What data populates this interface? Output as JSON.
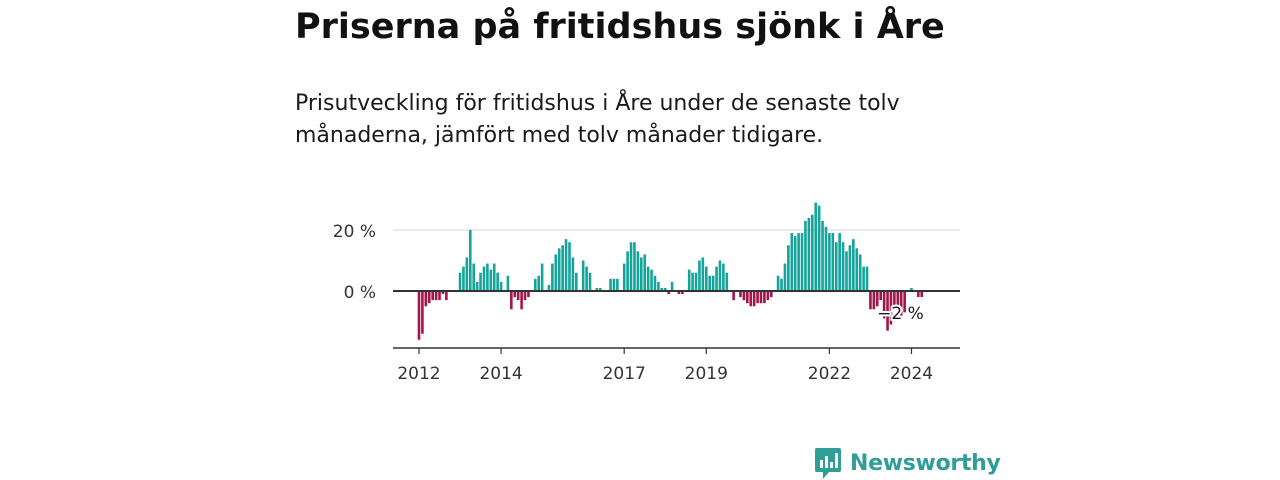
{
  "title": "Priserna på fritidshus sjönk i Åre",
  "subtitle": "Prisutveckling för fritidshus i Åre under de senaste tolv månaderna, jämfört med tolv månader tidigare.",
  "brand": {
    "name": "Newsworthy",
    "icon": "newsworthy-logo-icon"
  },
  "colors": {
    "positive": "#15a39a",
    "negative": "#a3154a",
    "axis": "#333333",
    "grid": "#dddddd",
    "brand": "#2f9e96"
  },
  "chart_data": {
    "type": "bar",
    "title": "Priserna på fritidshus sjönk i Åre",
    "xlabel": "",
    "ylabel": "",
    "ylim": [
      -20,
      30
    ],
    "yticks": [
      0,
      20
    ],
    "ytick_labels": [
      "0 %",
      "20 %"
    ],
    "xticks": [
      2012,
      2014,
      2017,
      2019,
      2022,
      2024
    ],
    "grid": true,
    "x_start": "2012-01",
    "x_end": "2025-02",
    "end_label": "−2 %",
    "values": [
      -16,
      -14,
      -5,
      -4,
      -3,
      -3,
      -3,
      -1,
      -3,
      0,
      0,
      0,
      6,
      8,
      11,
      20,
      9,
      3,
      6,
      8,
      9,
      7,
      9,
      6,
      3,
      0,
      5,
      -6,
      -2,
      -3,
      -6,
      -3,
      -2,
      0,
      4,
      5,
      9,
      0,
      2,
      9,
      12,
      14,
      15,
      17,
      16,
      11,
      6,
      0,
      10,
      8,
      6,
      0,
      1,
      1,
      0,
      0,
      4,
      4,
      4,
      0,
      9,
      13,
      16,
      16,
      13,
      11,
      12,
      8,
      7,
      5,
      3,
      1,
      1,
      -1,
      3,
      0,
      -1,
      -1,
      0,
      7,
      6,
      6,
      10,
      11,
      8,
      5,
      5,
      8,
      10,
      9,
      6,
      0,
      -3,
      0,
      -2,
      -3,
      -4,
      -5,
      -5,
      -4,
      -4,
      -4,
      -3,
      -2,
      0,
      5,
      4,
      9,
      15,
      19,
      18,
      19,
      19,
      23,
      24,
      25,
      29,
      28,
      23,
      21,
      19,
      19,
      16,
      19,
      16,
      13,
      15,
      17,
      14,
      12,
      8,
      8,
      -6,
      -6,
      -5,
      -3,
      -9,
      -13,
      -11,
      -6,
      -8,
      -9,
      -7,
      0,
      1,
      0,
      -2,
      -2
    ]
  }
}
